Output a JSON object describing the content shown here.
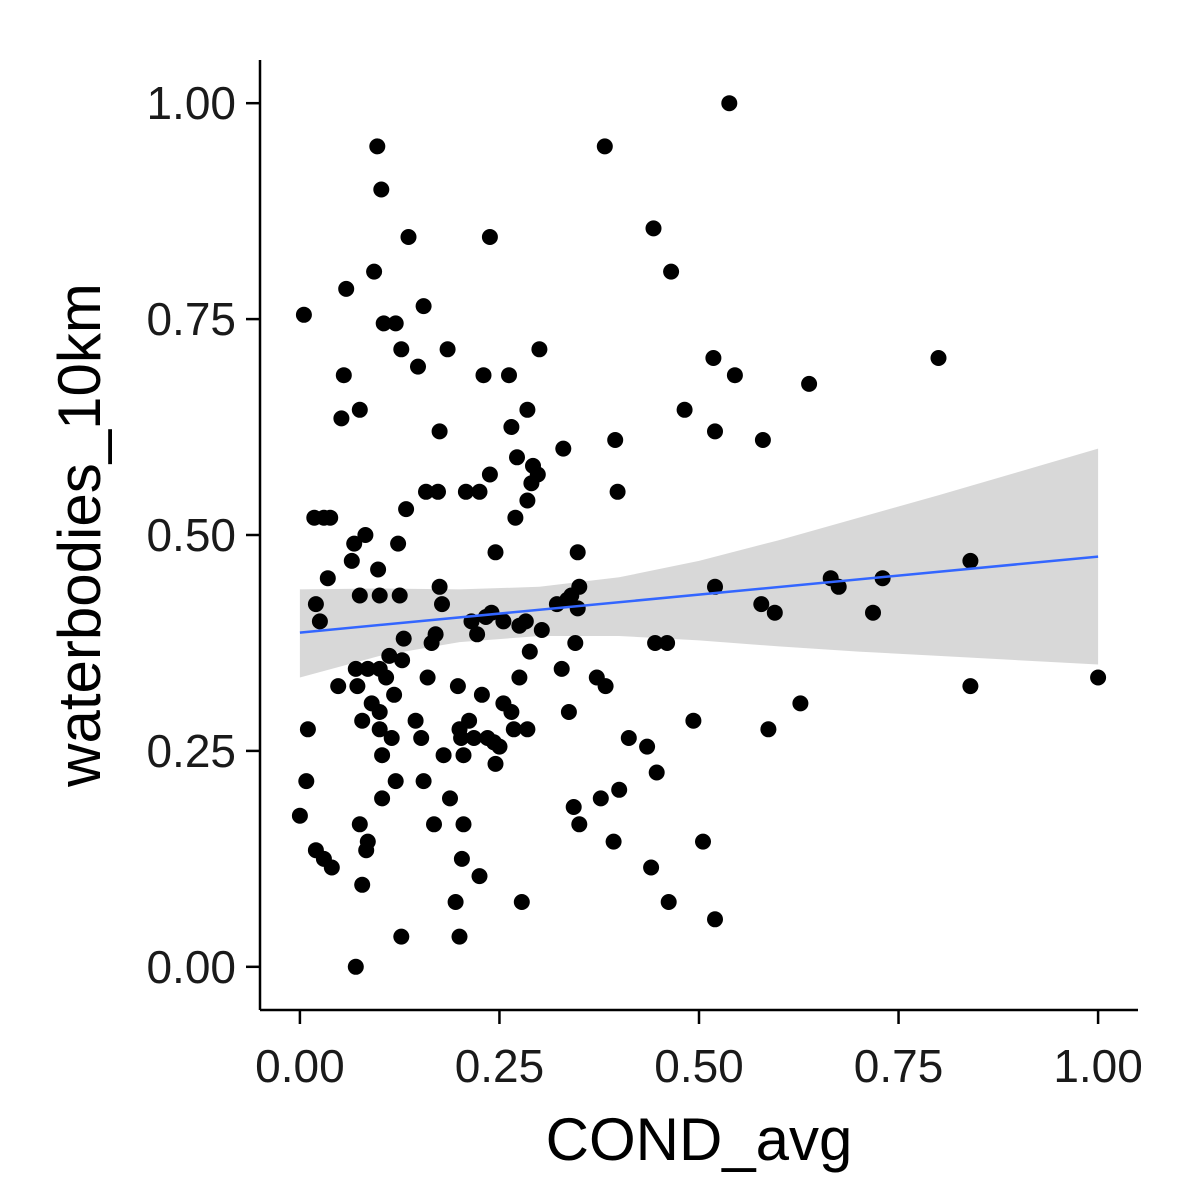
{
  "chart_data": {
    "type": "scatter",
    "title": "",
    "xlabel": "COND_avg",
    "ylabel": "waterbodies_10km",
    "xlim": [
      -0.05,
      1.05
    ],
    "ylim": [
      -0.05,
      1.05
    ],
    "xticks": [
      0,
      0.25,
      0.5,
      0.75,
      1.0
    ],
    "yticks": [
      0,
      0.25,
      0.5,
      0.75,
      1.0
    ],
    "xtick_labels": [
      "0.00",
      "0.25",
      "0.50",
      "0.75",
      "1.00"
    ],
    "ytick_labels": [
      "0.00",
      "0.25",
      "0.50",
      "0.75",
      "1.00"
    ],
    "grid": false,
    "legend": "none",
    "colors": {
      "points": "#000000",
      "trend_line": "#3366ff",
      "confidence_band": "#d4d4d4"
    },
    "series": [
      {
        "points": [
          [
            0.0,
            0.175
          ],
          [
            0.005,
            0.755
          ],
          [
            0.008,
            0.215
          ],
          [
            0.01,
            0.275
          ],
          [
            0.018,
            0.52
          ],
          [
            0.02,
            0.42
          ],
          [
            0.02,
            0.135
          ],
          [
            0.025,
            0.4
          ],
          [
            0.03,
            0.52
          ],
          [
            0.03,
            0.125
          ],
          [
            0.035,
            0.45
          ],
          [
            0.038,
            0.52
          ],
          [
            0.04,
            0.115
          ],
          [
            0.048,
            0.325
          ],
          [
            0.052,
            0.635
          ],
          [
            0.055,
            0.685
          ],
          [
            0.058,
            0.785
          ],
          [
            0.065,
            0.47
          ],
          [
            0.068,
            0.49
          ],
          [
            0.07,
            0.0
          ],
          [
            0.07,
            0.345
          ],
          [
            0.072,
            0.325
          ],
          [
            0.075,
            0.645
          ],
          [
            0.075,
            0.43
          ],
          [
            0.075,
            0.165
          ],
          [
            0.078,
            0.285
          ],
          [
            0.078,
            0.095
          ],
          [
            0.082,
            0.5
          ],
          [
            0.083,
            0.135
          ],
          [
            0.085,
            0.145
          ],
          [
            0.085,
            0.345
          ],
          [
            0.09,
            0.305
          ],
          [
            0.093,
            0.805
          ],
          [
            0.097,
            0.95
          ],
          [
            0.098,
            0.46
          ],
          [
            0.1,
            0.43
          ],
          [
            0.1,
            0.345
          ],
          [
            0.1,
            0.295
          ],
          [
            0.1,
            0.275
          ],
          [
            0.102,
            0.9
          ],
          [
            0.103,
            0.245
          ],
          [
            0.103,
            0.195
          ],
          [
            0.105,
            0.745
          ],
          [
            0.108,
            0.335
          ],
          [
            0.112,
            0.36
          ],
          [
            0.115,
            0.265
          ],
          [
            0.118,
            0.315
          ],
          [
            0.12,
            0.745
          ],
          [
            0.12,
            0.215
          ],
          [
            0.123,
            0.49
          ],
          [
            0.125,
            0.43
          ],
          [
            0.127,
            0.035
          ],
          [
            0.127,
            0.715
          ],
          [
            0.128,
            0.355
          ],
          [
            0.13,
            0.38
          ],
          [
            0.133,
            0.53
          ],
          [
            0.136,
            0.845
          ],
          [
            0.145,
            0.285
          ],
          [
            0.148,
            0.695
          ],
          [
            0.152,
            0.265
          ],
          [
            0.155,
            0.765
          ],
          [
            0.155,
            0.215
          ],
          [
            0.158,
            0.55
          ],
          [
            0.16,
            0.335
          ],
          [
            0.165,
            0.375
          ],
          [
            0.168,
            0.165
          ],
          [
            0.17,
            0.385
          ],
          [
            0.173,
            0.55
          ],
          [
            0.175,
            0.44
          ],
          [
            0.175,
            0.62
          ],
          [
            0.178,
            0.42
          ],
          [
            0.18,
            0.245
          ],
          [
            0.185,
            0.715
          ],
          [
            0.188,
            0.195
          ],
          [
            0.195,
            0.075
          ],
          [
            0.198,
            0.325
          ],
          [
            0.2,
            0.035
          ],
          [
            0.2,
            0.275
          ],
          [
            0.202,
            0.265
          ],
          [
            0.203,
            0.125
          ],
          [
            0.205,
            0.245
          ],
          [
            0.205,
            0.165
          ],
          [
            0.208,
            0.55
          ],
          [
            0.212,
            0.285
          ],
          [
            0.215,
            0.4
          ],
          [
            0.218,
            0.265
          ],
          [
            0.222,
            0.385
          ],
          [
            0.225,
            0.55
          ],
          [
            0.225,
            0.105
          ],
          [
            0.228,
            0.315
          ],
          [
            0.23,
            0.685
          ],
          [
            0.233,
            0.405
          ],
          [
            0.235,
            0.265
          ],
          [
            0.238,
            0.57
          ],
          [
            0.238,
            0.845
          ],
          [
            0.24,
            0.41
          ],
          [
            0.243,
            0.26
          ],
          [
            0.245,
            0.48
          ],
          [
            0.245,
            0.235
          ],
          [
            0.25,
            0.255
          ],
          [
            0.255,
            0.4
          ],
          [
            0.255,
            0.305
          ],
          [
            0.262,
            0.685
          ],
          [
            0.265,
            0.295
          ],
          [
            0.265,
            0.625
          ],
          [
            0.268,
            0.275
          ],
          [
            0.27,
            0.52
          ],
          [
            0.272,
            0.59
          ],
          [
            0.275,
            0.395
          ],
          [
            0.275,
            0.335
          ],
          [
            0.278,
            0.075
          ],
          [
            0.283,
            0.4
          ],
          [
            0.285,
            0.645
          ],
          [
            0.285,
            0.275
          ],
          [
            0.285,
            0.54
          ],
          [
            0.288,
            0.365
          ],
          [
            0.29,
            0.56
          ],
          [
            0.292,
            0.58
          ],
          [
            0.298,
            0.57
          ],
          [
            0.3,
            0.715
          ],
          [
            0.303,
            0.39
          ],
          [
            0.322,
            0.42
          ],
          [
            0.328,
            0.345
          ],
          [
            0.33,
            0.6
          ],
          [
            0.335,
            0.425
          ],
          [
            0.337,
            0.295
          ],
          [
            0.34,
            0.43
          ],
          [
            0.343,
            0.185
          ],
          [
            0.345,
            0.375
          ],
          [
            0.348,
            0.48
          ],
          [
            0.348,
            0.415
          ],
          [
            0.35,
            0.165
          ],
          [
            0.35,
            0.44
          ],
          [
            0.372,
            0.335
          ],
          [
            0.377,
            0.195
          ],
          [
            0.382,
            0.95
          ],
          [
            0.383,
            0.325
          ],
          [
            0.393,
            0.145
          ],
          [
            0.395,
            0.61
          ],
          [
            0.398,
            0.55
          ],
          [
            0.4,
            0.205
          ],
          [
            0.412,
            0.265
          ],
          [
            0.435,
            0.255
          ],
          [
            0.44,
            0.115
          ],
          [
            0.443,
            0.855
          ],
          [
            0.445,
            0.375
          ],
          [
            0.447,
            0.225
          ],
          [
            0.46,
            0.375
          ],
          [
            0.462,
            0.075
          ],
          [
            0.465,
            0.805
          ],
          [
            0.482,
            0.645
          ],
          [
            0.493,
            0.285
          ],
          [
            0.505,
            0.145
          ],
          [
            0.518,
            0.705
          ],
          [
            0.52,
            0.44
          ],
          [
            0.52,
            0.62
          ],
          [
            0.52,
            0.055
          ],
          [
            0.538,
            1.0
          ],
          [
            0.545,
            0.685
          ],
          [
            0.578,
            0.42
          ],
          [
            0.58,
            0.61
          ],
          [
            0.587,
            0.275
          ],
          [
            0.595,
            0.41
          ],
          [
            0.627,
            0.305
          ],
          [
            0.638,
            0.675
          ],
          [
            0.665,
            0.45
          ],
          [
            0.675,
            0.44
          ],
          [
            0.718,
            0.41
          ],
          [
            0.73,
            0.45
          ],
          [
            0.8,
            0.705
          ],
          [
            0.84,
            0.47
          ],
          [
            0.84,
            0.325
          ],
          [
            1.0,
            0.335
          ]
        ]
      }
    ],
    "trend": {
      "method": "linear",
      "x": [
        0.0,
        1.0
      ],
      "y": [
        0.387,
        0.475
      ],
      "band_x": [
        0.0,
        0.1,
        0.2,
        0.3,
        0.4,
        0.5,
        0.6,
        0.7,
        0.8,
        0.9,
        1.0
      ],
      "band_lower": [
        0.335,
        0.36,
        0.376,
        0.383,
        0.383,
        0.378,
        0.371,
        0.365,
        0.36,
        0.355,
        0.35
      ],
      "band_upper": [
        0.437,
        0.438,
        0.437,
        0.44,
        0.451,
        0.47,
        0.494,
        0.52,
        0.546,
        0.573,
        0.6
      ]
    }
  }
}
